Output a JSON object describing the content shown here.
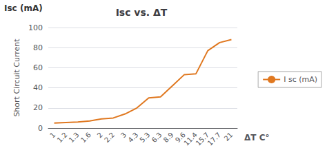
{
  "chart_data": {
    "type": "line",
    "title": "Isc vs. ΔT",
    "xlabel": "ΔT C°",
    "ylabel": "Short Circuit Current",
    "annotations": [
      "Isc (mA)"
    ],
    "categories": [
      "1",
      "1.2",
      "1.3",
      "1.6",
      "2",
      "2.2",
      "3",
      "4.3",
      "5.3",
      "6.3",
      "8.9",
      "9.6",
      "11.4",
      "15.7",
      "17.7",
      "21"
    ],
    "series": [
      {
        "name": "I sc (mA)",
        "color": "#E07820",
        "values": [
          5,
          5.5,
          6,
          7,
          9,
          10,
          14,
          20,
          30,
          31,
          42,
          53,
          54,
          77,
          85,
          88
        ]
      }
    ],
    "ylim": [
      0,
      100
    ],
    "yticks": [
      0,
      20,
      40,
      60,
      80,
      100
    ],
    "grid": true,
    "legend": "right"
  }
}
